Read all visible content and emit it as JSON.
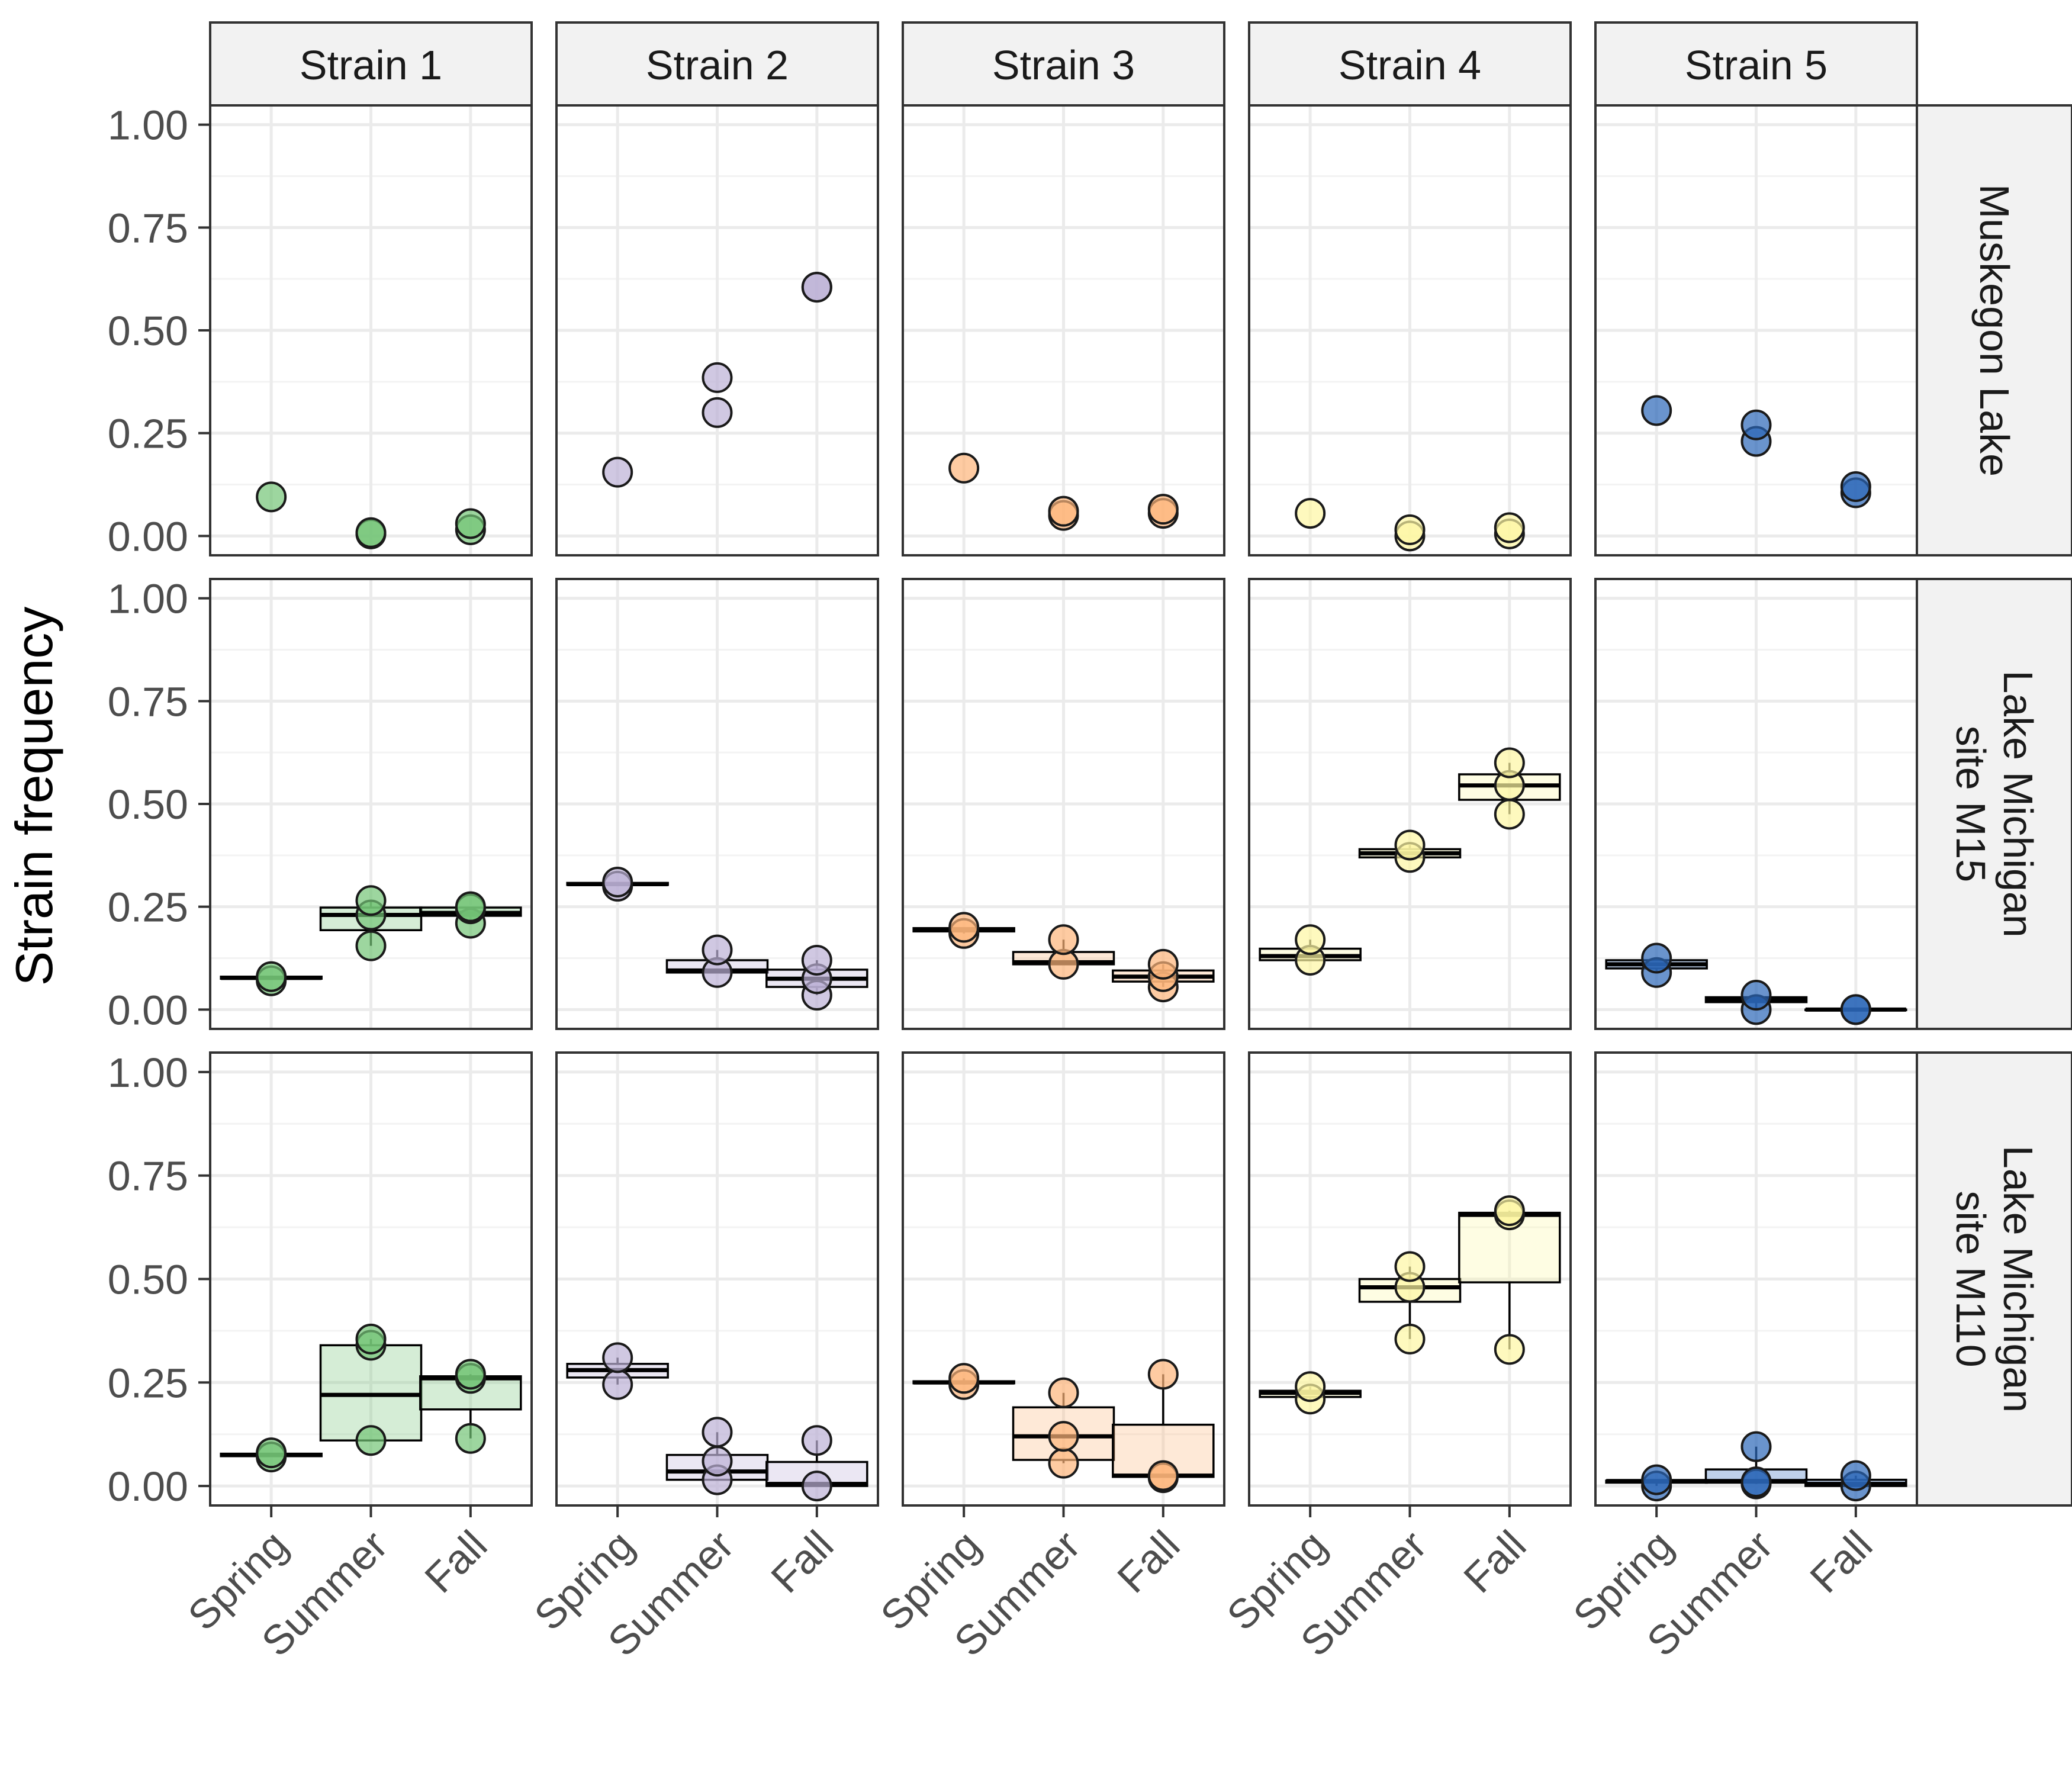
{
  "chart_data": {
    "type": "box-dot",
    "ylabel": "Strain frequency",
    "ylim": [
      0,
      1
    ],
    "yticks": [
      "0.00",
      "0.25",
      "0.50",
      "0.75",
      "1.00"
    ],
    "categories": [
      "Spring",
      "Summer",
      "Fall"
    ],
    "columns": [
      "Strain 1",
      "Strain 2",
      "Strain 3",
      "Strain 4",
      "Strain 5"
    ],
    "rows": [
      "Muskegon Lake",
      "Lake Michigan\nsite M15",
      "Lake Michigan\nsite M110"
    ],
    "colors": [
      "#74c476",
      "#bcb0d6",
      "#fdb57b",
      "#fdf7a3",
      "#2b66b8"
    ],
    "grid": true,
    "legend": "none",
    "points": [
      [
        [
          [
            0.095
          ],
          [
            0.005,
            0.008
          ],
          [
            0.015,
            0.03
          ]
        ],
        [
          [
            0.155
          ],
          [
            0.3,
            0.385
          ],
          [
            0.605,
            0.605
          ]
        ],
        [
          [
            0.165
          ],
          [
            0.05,
            0.06
          ],
          [
            0.055,
            0.065
          ]
        ],
        [
          [
            0.055
          ],
          [
            0.0,
            0.015
          ],
          [
            0.005,
            0.02
          ]
        ],
        [
          [
            0.305
          ],
          [
            0.23,
            0.27
          ],
          [
            0.105,
            0.12
          ]
        ]
      ],
      [
        [
          [
            0.07,
            0.08
          ],
          [
            0.155,
            0.23,
            0.265
          ],
          [
            0.21,
            0.245,
            0.25
          ]
        ],
        [
          [
            0.3,
            0.31
          ],
          [
            0.09,
            0.145
          ],
          [
            0.035,
            0.075,
            0.12
          ]
        ],
        [
          [
            0.185,
            0.2
          ],
          [
            0.11,
            0.17
          ],
          [
            0.055,
            0.08,
            0.11
          ]
        ],
        [
          [
            0.12,
            0.17
          ],
          [
            0.37,
            0.4
          ],
          [
            0.475,
            0.545,
            0.6
          ]
        ],
        [
          [
            0.09,
            0.125
          ],
          [
            0.0,
            0.035
          ],
          [
            0.0,
            0.0
          ]
        ]
      ],
      [
        [
          [
            0.07,
            0.08
          ],
          [
            0.11,
            0.34,
            0.355
          ],
          [
            0.115,
            0.26,
            0.27
          ]
        ],
        [
          [
            0.245,
            0.31
          ],
          [
            0.015,
            0.06,
            0.13
          ],
          [
            0.0,
            0.11
          ]
        ],
        [
          [
            0.245,
            0.26
          ],
          [
            0.055,
            0.12,
            0.225
          ],
          [
            0.02,
            0.025,
            0.27
          ]
        ],
        [
          [
            0.21,
            0.24
          ],
          [
            0.355,
            0.48,
            0.53
          ],
          [
            0.33,
            0.655,
            0.665
          ]
        ],
        [
          [
            0.0,
            0.015
          ],
          [
            0.005,
            0.01,
            0.095
          ],
          [
            0.0,
            0.025
          ]
        ]
      ]
    ],
    "boxes": [
      null,
      [
        [
          [
            0.072,
            0.075,
            0.077,
            0.08,
            0.08
          ],
          [
            0.155,
            0.193,
            0.23,
            0.248,
            0.265
          ],
          [
            0.21,
            0.228,
            0.235,
            0.248,
            0.25
          ]
        ],
        [
          [
            0.3,
            0.303,
            0.305,
            0.308,
            0.31
          ],
          [
            0.09,
            0.09,
            0.095,
            0.12,
            0.145
          ],
          [
            0.035,
            0.055,
            0.075,
            0.097,
            0.12
          ]
        ],
        [
          [
            0.185,
            0.19,
            0.195,
            0.198,
            0.2
          ],
          [
            0.11,
            0.11,
            0.115,
            0.14,
            0.17
          ],
          [
            0.055,
            0.068,
            0.08,
            0.095,
            0.11
          ]
        ],
        [
          [
            0.12,
            0.12,
            0.13,
            0.148,
            0.17
          ],
          [
            0.37,
            0.37,
            0.38,
            0.39,
            0.4
          ],
          [
            0.475,
            0.51,
            0.545,
            0.572,
            0.6
          ]
        ],
        [
          [
            0.09,
            0.1,
            0.11,
            0.12,
            0.125
          ],
          [
            0.0,
            0.018,
            0.025,
            0.03,
            0.035
          ],
          [
            0.0,
            0.0,
            0.0,
            0.0,
            0.0
          ]
        ]
      ],
      [
        [
          [
            0.07,
            0.072,
            0.075,
            0.078,
            0.08
          ],
          [
            0.11,
            0.11,
            0.22,
            0.34,
            0.355
          ],
          [
            0.115,
            0.185,
            0.26,
            0.265,
            0.27
          ]
        ],
        [
          [
            0.245,
            0.262,
            0.28,
            0.295,
            0.31
          ],
          [
            0.015,
            0.015,
            0.035,
            0.075,
            0.13
          ],
          [
            0.0,
            0.0,
            0.005,
            0.058,
            0.11
          ]
        ],
        [
          [
            0.245,
            0.248,
            0.25,
            0.253,
            0.26
          ],
          [
            0.055,
            0.063,
            0.12,
            0.19,
            0.225
          ],
          [
            0.02,
            0.022,
            0.025,
            0.148,
            0.27
          ]
        ],
        [
          [
            0.21,
            0.215,
            0.225,
            0.23,
            0.24
          ],
          [
            0.355,
            0.445,
            0.48,
            0.5,
            0.53
          ],
          [
            0.33,
            0.492,
            0.655,
            0.66,
            0.665
          ]
        ],
        [
          [
            0.0,
            0.008,
            0.012,
            0.013,
            0.015
          ],
          [
            0.005,
            0.008,
            0.012,
            0.04,
            0.095
          ],
          [
            0.0,
            0.0,
            0.005,
            0.015,
            0.025
          ]
        ]
      ]
    ]
  }
}
